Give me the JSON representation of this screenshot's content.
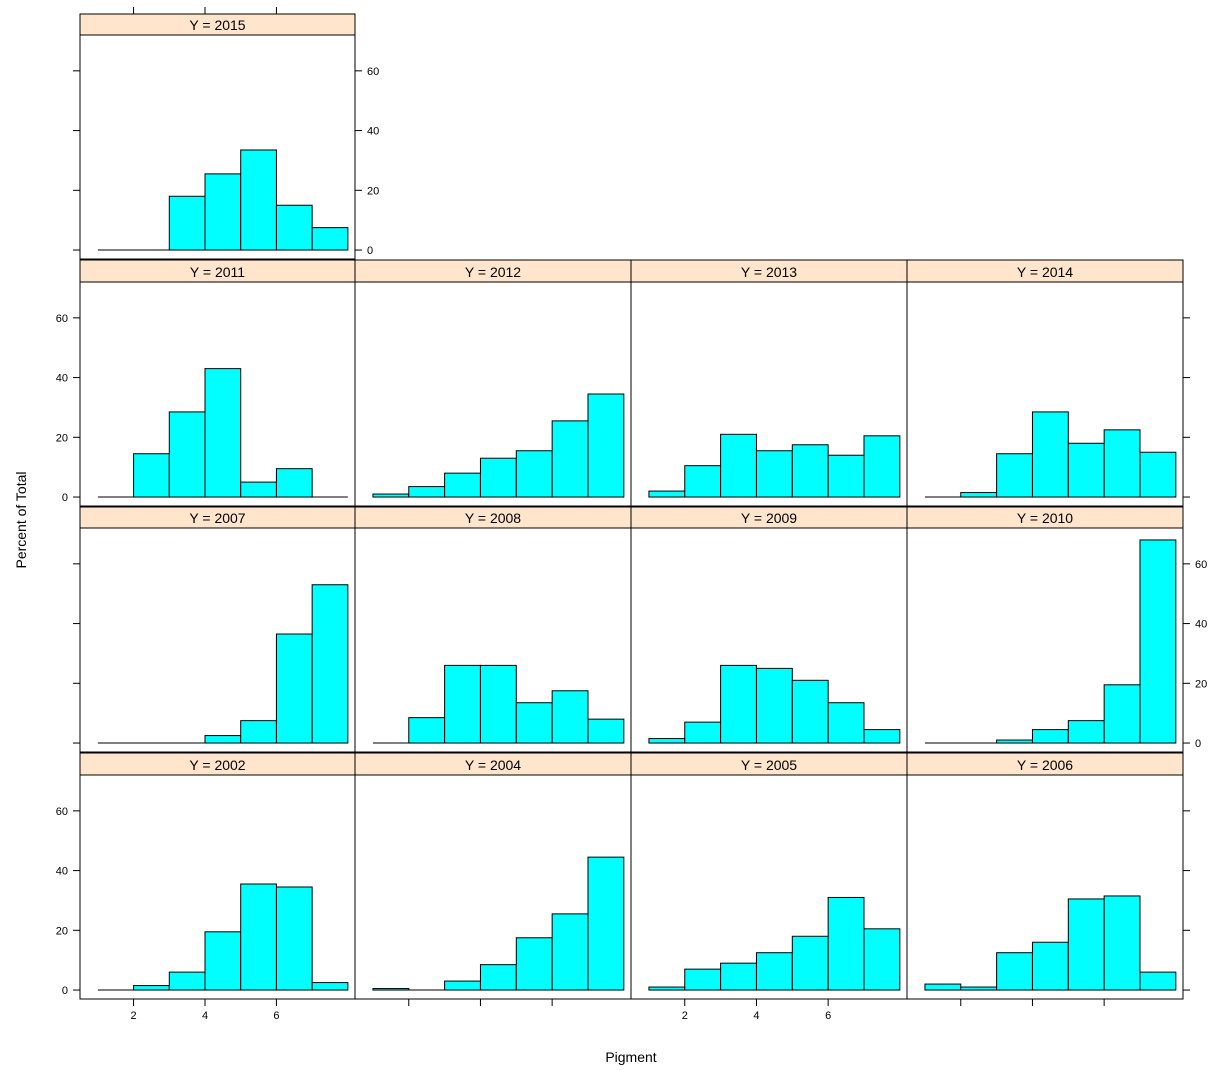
{
  "chart_data": {
    "type": "bar",
    "xlabel": "Pigment",
    "ylabel": "Percent of Total",
    "ylim": [
      0,
      72
    ],
    "bin_edges": [
      1,
      2,
      3,
      4,
      5,
      6,
      7,
      8
    ],
    "x_ticks": [
      2,
      4,
      6
    ],
    "y_ticks": [
      0,
      20,
      40,
      60
    ],
    "strip_fill": "#ffe5cc",
    "bar_fill": "#00ffff",
    "panels": [
      {
        "label": "Y = 2015",
        "values": [
          0,
          0,
          18,
          25.5,
          33.5,
          15,
          7.5
        ]
      },
      {
        "label": "Y = 2011",
        "values": [
          0,
          14.5,
          28.5,
          43,
          5,
          9.5,
          0
        ]
      },
      {
        "label": "Y = 2012",
        "values": [
          1,
          3.5,
          8,
          13,
          15.5,
          25.5,
          34.5
        ]
      },
      {
        "label": "Y = 2013",
        "values": [
          2,
          10.5,
          21,
          15.5,
          17.5,
          14,
          20.5
        ]
      },
      {
        "label": "Y = 2014",
        "values": [
          0,
          1.5,
          14.5,
          28.5,
          18,
          22.5,
          15
        ]
      },
      {
        "label": "Y = 2007",
        "values": [
          0,
          0,
          0,
          2.5,
          7.5,
          36.5,
          53
        ]
      },
      {
        "label": "Y = 2008",
        "values": [
          0,
          8.5,
          26,
          26,
          13.5,
          17.5,
          8
        ]
      },
      {
        "label": "Y = 2009",
        "values": [
          1.5,
          7,
          26,
          25,
          21,
          13.5,
          4.5
        ]
      },
      {
        "label": "Y = 2010",
        "values": [
          0,
          0,
          1,
          4.5,
          7.5,
          19.5,
          68
        ]
      },
      {
        "label": "Y = 2002",
        "values": [
          0,
          1.5,
          6,
          19.5,
          35.5,
          34.5,
          2.5
        ]
      },
      {
        "label": "Y = 2004",
        "values": [
          0.5,
          0,
          3,
          8.5,
          17.5,
          25.5,
          44.5
        ]
      },
      {
        "label": "Y = 2005",
        "values": [
          1,
          7,
          9,
          12.5,
          18,
          31,
          20.5
        ]
      },
      {
        "label": "Y = 2006",
        "values": [
          2,
          1,
          12.5,
          16,
          30.5,
          31.5,
          6
        ]
      }
    ]
  }
}
